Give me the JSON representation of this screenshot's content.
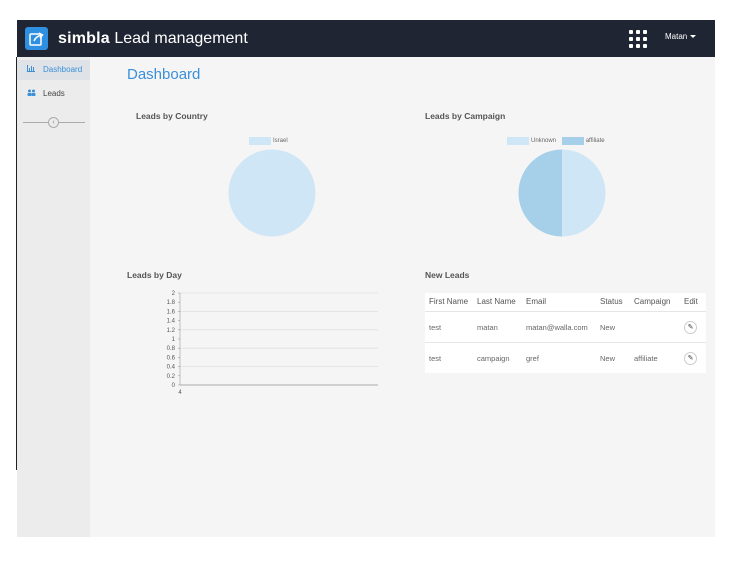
{
  "header": {
    "brand_bold": "simbla",
    "brand_text": "Lead management",
    "user": "Matan"
  },
  "sidebar": {
    "items": [
      {
        "label": "Dashboard",
        "icon": "bar-chart-icon"
      },
      {
        "label": "Leads",
        "icon": "users-icon"
      }
    ]
  },
  "page": {
    "title": "Dashboard"
  },
  "sections": {
    "country": "Leads by Country",
    "campaign": "Leads by Campaign",
    "day": "Leads by Day",
    "new_leads": "New Leads"
  },
  "chart_data": [
    {
      "type": "pie",
      "title": "Leads by Country",
      "labels": [
        "Israel"
      ],
      "values": [
        2
      ],
      "colors": [
        "#cfe6f7"
      ]
    },
    {
      "type": "pie",
      "title": "Leads by Campaign",
      "labels": [
        "Unknown",
        "affiliate"
      ],
      "values": [
        1,
        1
      ],
      "colors": [
        "#cfe6f7",
        "#a6cfea"
      ]
    },
    {
      "type": "line",
      "title": "Leads by Day",
      "x_ticks": [
        "4"
      ],
      "y_ticks": [
        "2",
        "1.8",
        "1.6",
        "1.4",
        "1.2",
        "1",
        "0.8",
        "0.6",
        "0.4",
        "0.2",
        "0"
      ],
      "ylim": [
        0,
        2
      ],
      "grid": true
    }
  ],
  "table": {
    "headers": [
      "First Name",
      "Last Name",
      "Email",
      "Status",
      "Campaign",
      "Edit"
    ],
    "rows": [
      {
        "first": "test",
        "last": "matan",
        "email": "matan@walla.com",
        "status": "New",
        "campaign": ""
      },
      {
        "first": "test",
        "last": "campaign",
        "email": "gref",
        "status": "New",
        "campaign": "affiliate"
      }
    ]
  }
}
